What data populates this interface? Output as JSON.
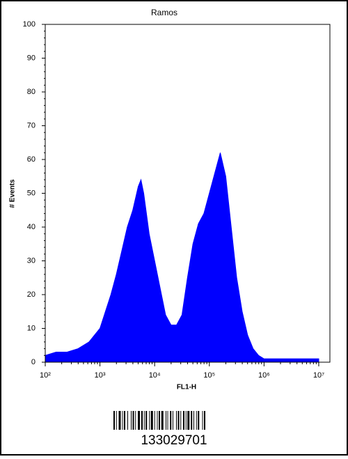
{
  "chart_data": {
    "type": "area",
    "title": "Ramos",
    "x_label": "FL1-H",
    "y_label": "# Events",
    "color": "#0000ff",
    "x_log": true,
    "x": [
      100,
      158,
      251,
      398,
      631,
      1000,
      1259,
      1585,
      1995,
      2512,
      3162,
      3981,
      5012,
      5623,
      6310,
      7943,
      10000,
      12589,
      15849,
      19953,
      25119,
      31623,
      39811,
      50119,
      63096,
      79433,
      100000,
      125893,
      158489,
      199526,
      251189,
      316228,
      398107,
      501187,
      630957,
      794328,
      1000000,
      1584893,
      2511886,
      3981072,
      6309573,
      10000000
    ],
    "values": [
      2,
      3,
      3,
      4,
      6,
      10,
      15,
      20,
      26,
      33,
      40,
      45,
      52,
      54,
      50,
      38,
      30,
      22,
      14,
      11,
      11,
      14,
      25,
      35,
      41,
      44,
      50,
      56,
      62,
      55,
      40,
      25,
      15,
      8,
      4,
      2,
      1,
      1,
      1,
      1,
      1,
      1
    ],
    "xlim": [
      100,
      16000000
    ],
    "xticks": [
      {
        "value": 100,
        "label": "10²"
      },
      {
        "value": 1000,
        "label": "10³"
      },
      {
        "value": 10000,
        "label": "10⁴"
      },
      {
        "value": 100000,
        "label": "10⁵"
      },
      {
        "value": 1000000,
        "label": "10⁶"
      },
      {
        "value": 10000000,
        "label": "10⁷"
      }
    ],
    "ylim": [
      0,
      100
    ],
    "yticks": [
      0,
      10,
      20,
      30,
      40,
      50,
      60,
      70,
      80,
      90,
      100
    ]
  },
  "barcode": {
    "number": "133029701"
  }
}
